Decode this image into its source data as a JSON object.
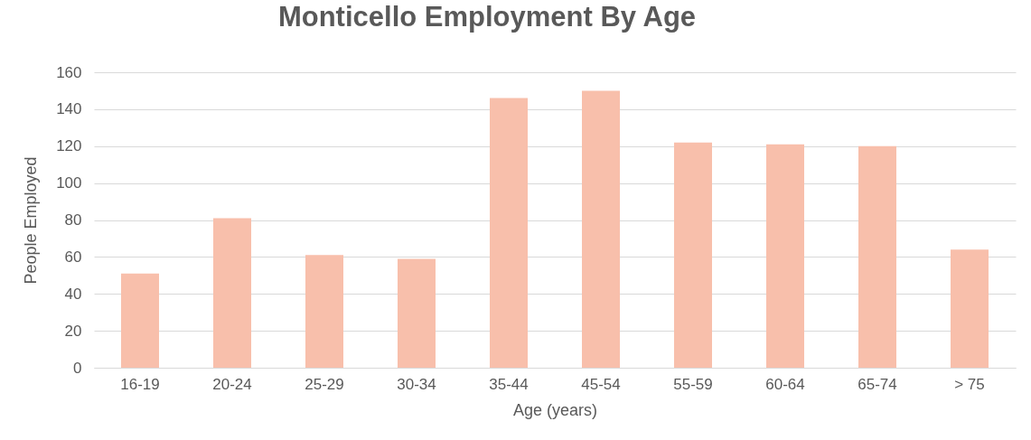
{
  "chart_data": {
    "type": "bar",
    "title": "Monticello Employment By Age",
    "xlabel": "Age (years)",
    "ylabel": "People Employed",
    "categories": [
      "16-19",
      "20-24",
      "25-29",
      "30-34",
      "35-44",
      "45-54",
      "55-59",
      "60-64",
      "65-74",
      "> 75"
    ],
    "values": [
      51,
      81,
      61,
      59,
      146,
      150,
      122,
      121,
      120,
      64
    ],
    "color": "#f8bfab",
    "ylim": [
      0,
      160
    ],
    "yticks": [
      0,
      20,
      40,
      60,
      80,
      100,
      120,
      140,
      160
    ],
    "grid": "y"
  }
}
